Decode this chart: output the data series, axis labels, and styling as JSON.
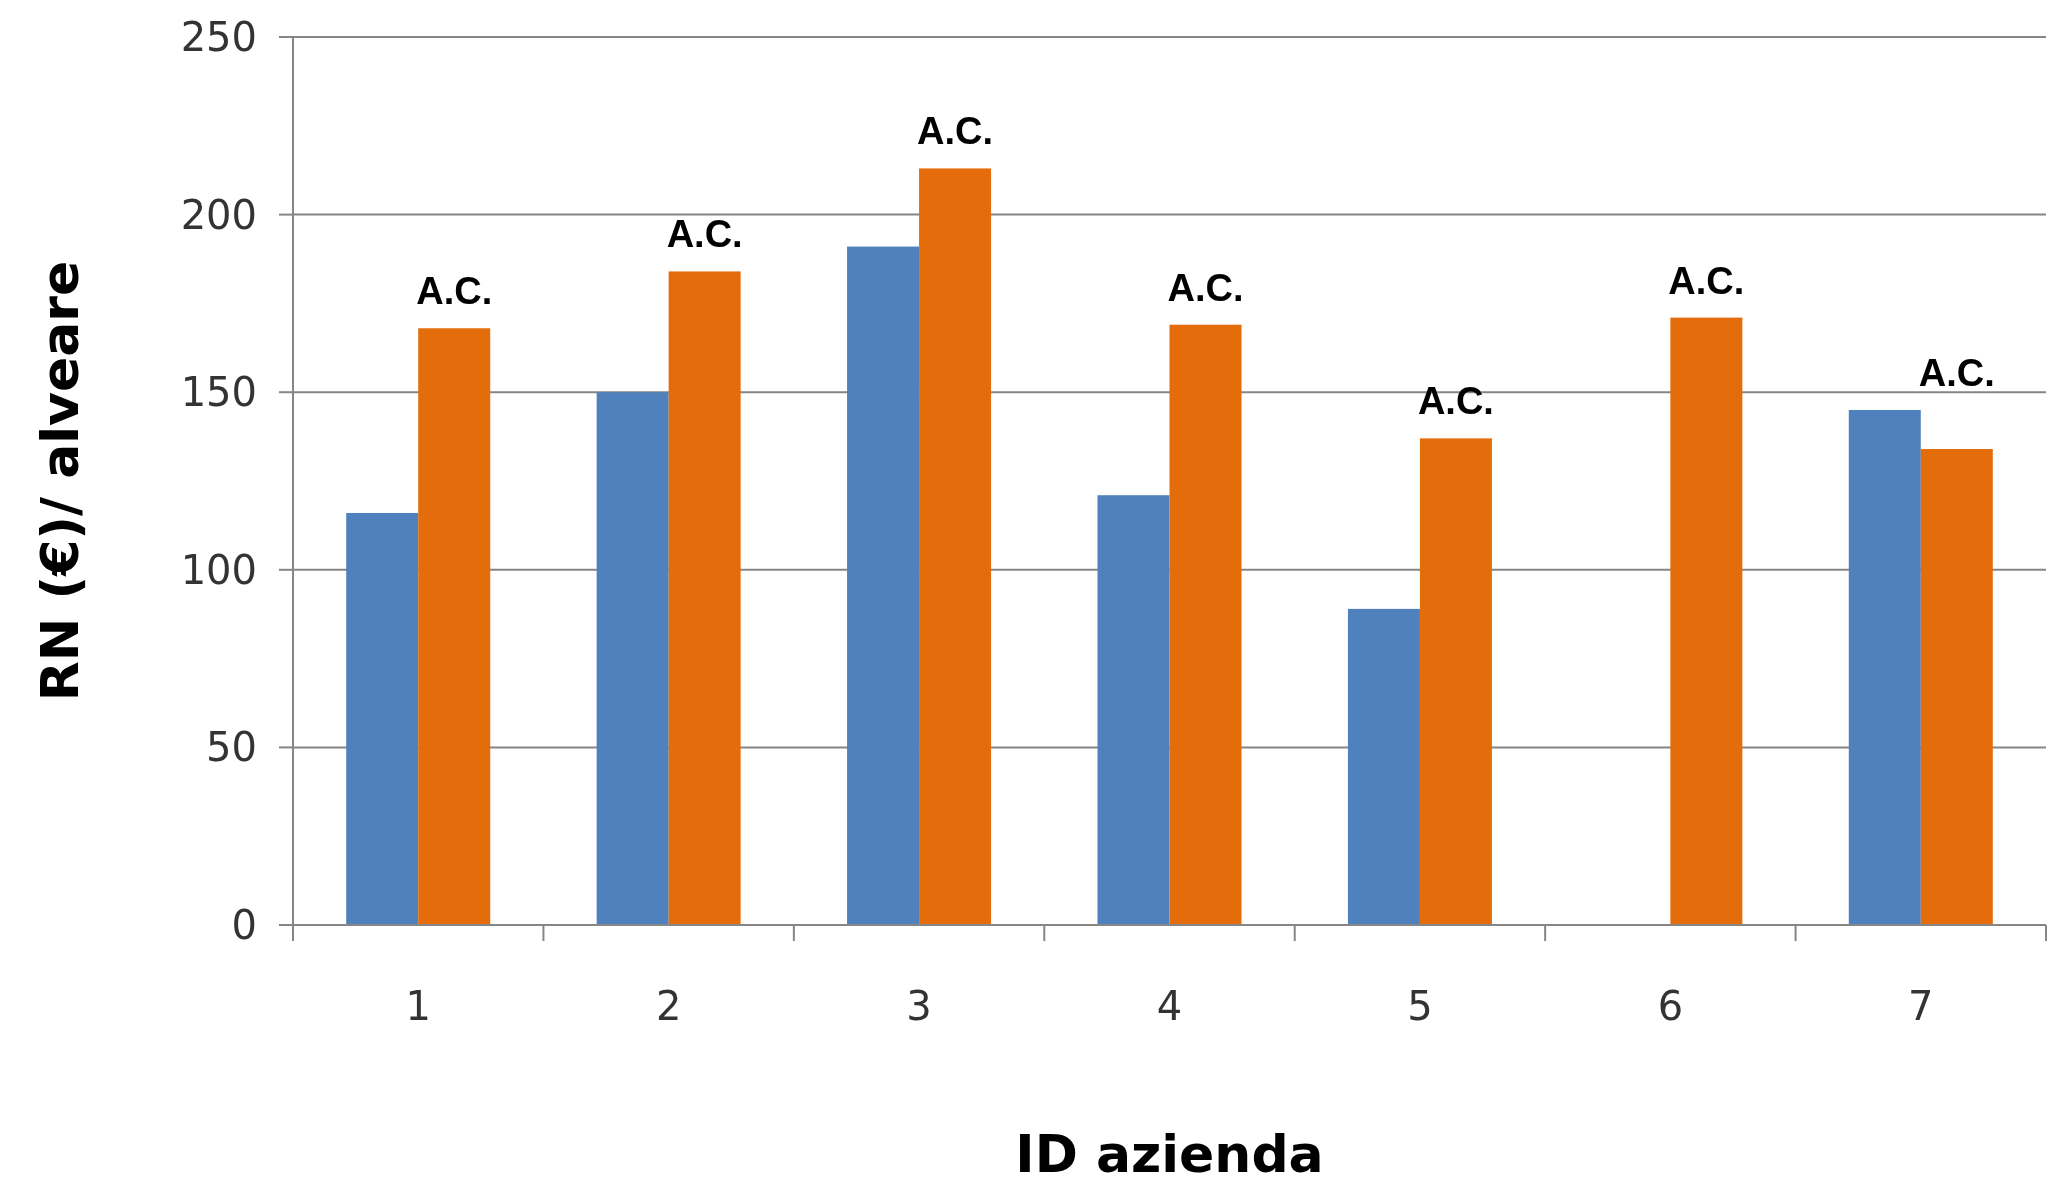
{
  "chart_data": {
    "type": "bar",
    "xlabel": "ID azienda",
    "ylabel": "RN (€)/ alveare",
    "categories": [
      "1",
      "2",
      "3",
      "4",
      "5",
      "6",
      "7"
    ],
    "series": [
      {
        "color": "#4f81bd",
        "values": [
          116,
          150,
          191,
          121,
          89,
          null,
          145
        ]
      },
      {
        "color": "#e46c0a",
        "values": [
          168,
          184,
          213,
          169,
          137,
          171,
          134
        ]
      }
    ],
    "ylim": [
      0,
      250
    ],
    "yticks": [
      0,
      50,
      100,
      150,
      200,
      250
    ],
    "grid": "y",
    "annotations": [
      {
        "text": "A.C.",
        "x": "1",
        "y": 168
      },
      {
        "text": "A.C.",
        "x": "2",
        "y": 184
      },
      {
        "text": "A.C.",
        "x": "3",
        "y": 213
      },
      {
        "text": "A.C.",
        "x": "4",
        "y": 169
      },
      {
        "text": "A.C.",
        "x": "5",
        "y": 137
      },
      {
        "text": "A.C.",
        "x": "6",
        "y": 171
      },
      {
        "text": "A.C.",
        "x": "7",
        "y": 145
      }
    ]
  }
}
